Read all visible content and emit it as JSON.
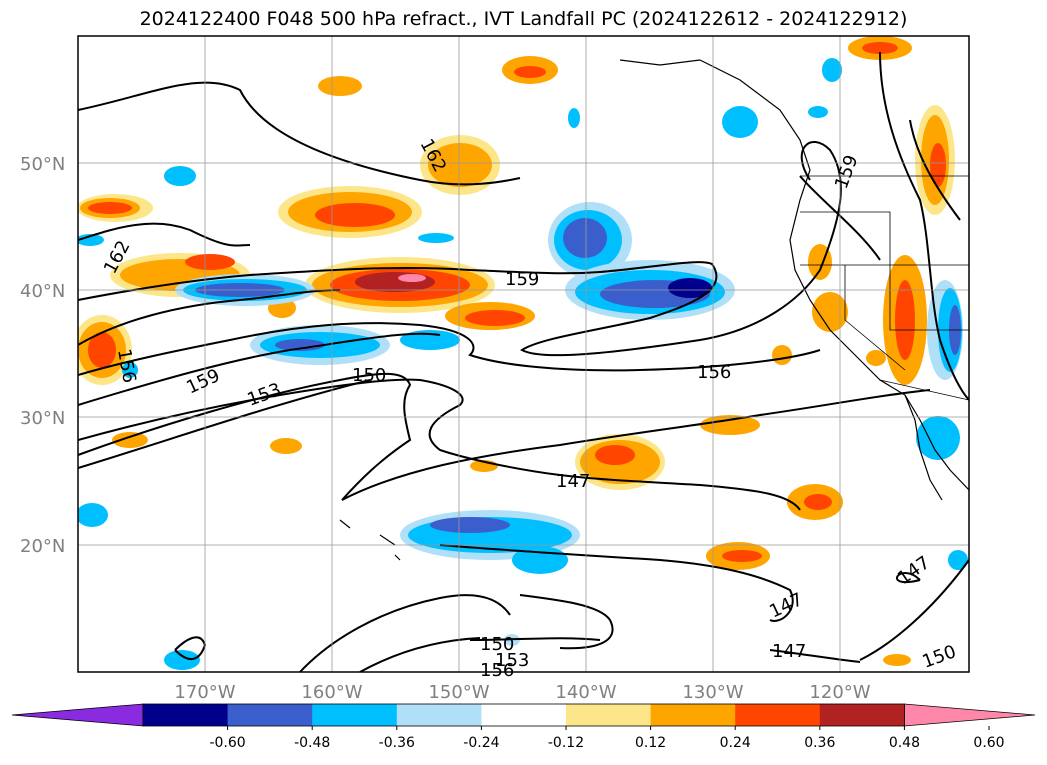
{
  "title": "2024122400 F048 500 hPa refract., IVT Landfall PC (2024122612 - 2024122912)",
  "lat_ticks": [
    "20°N",
    "30°N",
    "40°N",
    "50°N"
  ],
  "lon_ticks": [
    "170°W",
    "160°W",
    "150°W",
    "140°W",
    "130°W",
    "120°W"
  ],
  "contour_labels": {
    "c162a": "162",
    "c162b": "162",
    "c159a": "159",
    "c159b": "159",
    "c159c": "159",
    "c156a": "156",
    "c156b": "156",
    "c153a": "153",
    "c153b": "153",
    "c150a": "150",
    "c150b": "150",
    "c150c": "150",
    "c147a": "147",
    "c147b": "147",
    "c147c": "147",
    "c147d": "147",
    "c156c": "156"
  },
  "colorbar": {
    "colors": [
      "#8a2be2",
      "#00008b",
      "#3a5fcd",
      "#00bfff",
      "#b0e0f8",
      "#ffffff",
      "#fde68a",
      "#ffa500",
      "#ff4500",
      "#b22222",
      "#ff88aa"
    ],
    "labels": [
      "-0.60",
      "-0.48",
      "-0.36",
      "-0.24",
      "-0.12",
      "0.12",
      "0.24",
      "0.36",
      "0.48",
      "0.60"
    ]
  }
}
